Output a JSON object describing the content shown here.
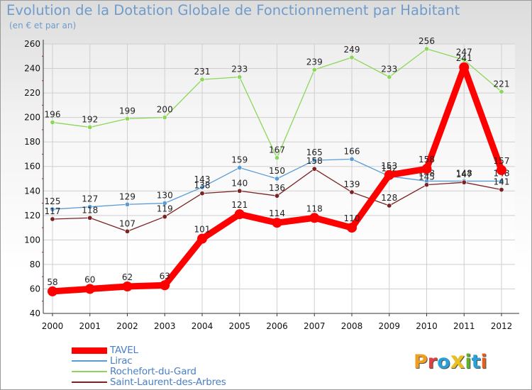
{
  "chart_data": {
    "type": "line",
    "title": "Evolution de la Dotation Globale de Fonctionnement par Habitant",
    "subtitle": "(en € et par an)",
    "categories": [
      "2000",
      "2001",
      "2002",
      "2003",
      "2004",
      "2005",
      "2006",
      "2007",
      "2008",
      "2009",
      "2010",
      "2011",
      "2012"
    ],
    "ylim": [
      40,
      260
    ],
    "yticks": [
      40,
      60,
      80,
      100,
      120,
      140,
      160,
      180,
      200,
      220,
      240,
      260
    ],
    "grid": true,
    "legend_position": "bottom-left",
    "series": [
      {
        "name": "TAVEL",
        "color": "#ff0000",
        "values": [
          58,
          60,
          62,
          63,
          101,
          121,
          114,
          118,
          110,
          153,
          158,
          241,
          157
        ]
      },
      {
        "name": "Lirac",
        "color": "#5b9bd5",
        "values": [
          125,
          127,
          129,
          130,
          143,
          159,
          150,
          165,
          166,
          152,
          148,
          148,
          148
        ]
      },
      {
        "name": "Rochefort-du-Gard",
        "color": "#8cd65a",
        "values": [
          196,
          192,
          199,
          200,
          231,
          233,
          167,
          239,
          249,
          233,
          256,
          247,
          221
        ]
      },
      {
        "name": "Saint-Laurent-des-Arbres",
        "color": "#7b2222",
        "values": [
          117,
          118,
          107,
          119,
          138,
          140,
          136,
          158,
          139,
          128,
          145,
          147,
          141
        ]
      }
    ]
  },
  "logo": {
    "text": "Proxiti",
    "letters": [
      "P",
      "r",
      "o",
      "x",
      "i",
      "t",
      "i"
    ]
  }
}
